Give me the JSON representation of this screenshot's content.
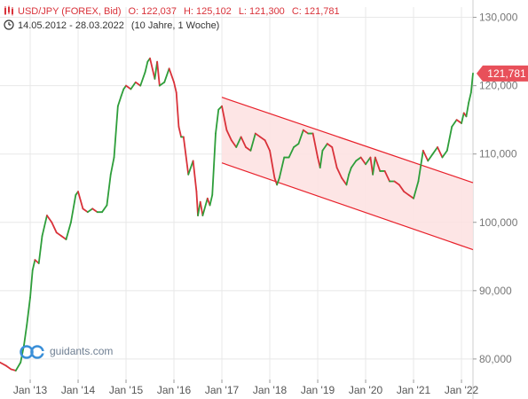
{
  "header": {
    "instrument": "USD/JPY (FOREX, Bid)",
    "open": "O: 122,037",
    "high": "H: 125,102",
    "low": "L: 121,300",
    "close": "C: 121,781",
    "range": "14.05.2012 - 28.03.2022",
    "period": "(10 Jahre, 1 Woche)"
  },
  "branding": {
    "logo_text": "guidants.com"
  },
  "colors": {
    "up": "#2e9e3a",
    "down": "#d9323a",
    "wick": "#7a7a7a",
    "channel_line": "#e8202a",
    "channel_fill": "#fde0e1",
    "price_badge": "#e8505a",
    "grid": "#e8e8e8",
    "axis_text": "#777777"
  },
  "chart_data": {
    "type": "line",
    "title": "USD/JPY (FOREX, Bid)",
    "x_tick_labels": [
      "Jan '13",
      "Jan '14",
      "Jan '15",
      "Jan '16",
      "Jan '17",
      "Jan '18",
      "Jan '19",
      "Jan '20",
      "Jan '21",
      "Jan '22"
    ],
    "x_ticks": [
      2013,
      2014,
      2015,
      2016,
      2017,
      2018,
      2019,
      2020,
      2021,
      2022
    ],
    "xlim": [
      2012.37,
      2022.24
    ],
    "ylim": [
      77,
      131.5
    ],
    "y_tick_values": [
      80,
      90,
      100,
      110,
      120,
      130
    ],
    "y_tick_labels": [
      "80,000",
      "90,000",
      "100,000",
      "110,000",
      "120,000",
      "130,000"
    ],
    "last_price": 121.781,
    "last_price_label": "121,781",
    "grid": true,
    "series": [
      {
        "x": [
          2012.37,
          2012.5,
          2012.6,
          2012.7,
          2012.8,
          2012.87,
          2012.93,
          2013.0,
          2013.05,
          2013.1,
          2013.18,
          2013.25,
          2013.35,
          2013.45,
          2013.55,
          2013.65,
          2013.75,
          2013.85,
          2013.95,
          2014.0,
          2014.1,
          2014.2,
          2014.3,
          2014.4,
          2014.5,
          2014.6,
          2014.68,
          2014.75,
          2014.83,
          2014.9,
          2014.95,
          2015.0,
          2015.1,
          2015.2,
          2015.3,
          2015.4,
          2015.45,
          2015.5,
          2015.6,
          2015.65,
          2015.7,
          2015.8,
          2015.9,
          2016.0,
          2016.05,
          2016.1,
          2016.15,
          2016.2,
          2016.3,
          2016.4,
          2016.47,
          2016.5,
          2016.55,
          2016.6,
          2016.7,
          2016.75,
          2016.8,
          2016.87,
          2016.93,
          2017.0,
          2017.1,
          2017.2,
          2017.3,
          2017.4,
          2017.5,
          2017.6,
          2017.7,
          2017.8,
          2017.9,
          2018.0,
          2018.1,
          2018.15,
          2018.2,
          2018.3,
          2018.4,
          2018.5,
          2018.6,
          2018.7,
          2018.8,
          2018.9,
          2019.0,
          2019.05,
          2019.1,
          2019.2,
          2019.3,
          2019.4,
          2019.5,
          2019.6,
          2019.65,
          2019.7,
          2019.8,
          2019.9,
          2020.0,
          2020.1,
          2020.15,
          2020.2,
          2020.3,
          2020.4,
          2020.5,
          2020.6,
          2020.7,
          2020.8,
          2020.9,
          2021.0,
          2021.1,
          2021.2,
          2021.3,
          2021.4,
          2021.5,
          2021.6,
          2021.7,
          2021.8,
          2021.9,
          2022.0,
          2022.05,
          2022.1,
          2022.15,
          2022.2,
          2022.24
        ],
        "y": [
          79.5,
          79.0,
          78.5,
          78.3,
          79.5,
          82.0,
          85.0,
          89.0,
          93.0,
          94.5,
          94.0,
          98.0,
          101.0,
          100.0,
          98.5,
          98.0,
          97.5,
          100.0,
          104.0,
          104.5,
          102.0,
          101.5,
          102.0,
          101.5,
          101.5,
          102.5,
          107.0,
          109.5,
          117.0,
          118.5,
          119.5,
          120.0,
          119.5,
          120.5,
          120.0,
          122.0,
          123.5,
          124.0,
          121.0,
          123.5,
          120.0,
          120.5,
          122.5,
          120.5,
          119.0,
          114.0,
          112.5,
          112.5,
          107.0,
          109.0,
          104.5,
          101.0,
          103.0,
          101.0,
          103.5,
          102.5,
          104.0,
          113.0,
          116.5,
          117.0,
          113.5,
          112.0,
          111.0,
          112.5,
          111.0,
          110.5,
          113.0,
          112.5,
          112.0,
          110.5,
          106.5,
          105.5,
          106.5,
          109.5,
          109.5,
          111.0,
          111.5,
          113.5,
          113.0,
          113.0,
          109.5,
          108.0,
          110.5,
          111.5,
          111.0,
          108.0,
          106.5,
          105.5,
          107.0,
          108.0,
          109.0,
          109.5,
          108.5,
          109.5,
          107.0,
          109.5,
          107.5,
          107.5,
          106.0,
          106.0,
          105.5,
          104.5,
          104.0,
          103.5,
          106.0,
          110.5,
          109.0,
          110.0,
          111.0,
          109.5,
          110.5,
          114.0,
          115.0,
          114.5,
          116.0,
          115.5,
          117.5,
          119.0,
          121.8
        ]
      }
    ],
    "channel": {
      "upper": {
        "x": [
          2017.0,
          2022.24
        ],
        "y": [
          118.3,
          105.8
        ]
      },
      "lower": {
        "x": [
          2017.0,
          2022.24
        ],
        "y": [
          108.7,
          96.0
        ]
      }
    }
  }
}
